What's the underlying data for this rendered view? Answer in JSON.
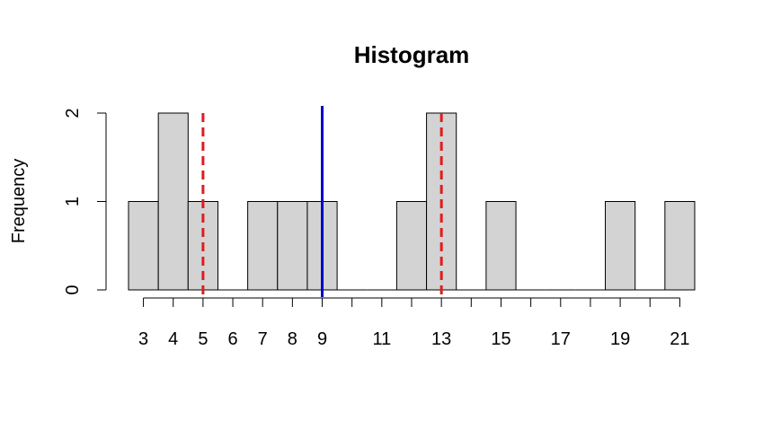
{
  "chart_data": {
    "type": "bar",
    "title": "Histogram",
    "xlabel": "",
    "ylabel": "Frequency",
    "bins": [
      {
        "from": 2.5,
        "to": 3.5,
        "count": 1
      },
      {
        "from": 3.5,
        "to": 4.5,
        "count": 2
      },
      {
        "from": 4.5,
        "to": 5.5,
        "count": 1
      },
      {
        "from": 5.5,
        "to": 6.5,
        "count": 0
      },
      {
        "from": 6.5,
        "to": 7.5,
        "count": 1
      },
      {
        "from": 7.5,
        "to": 8.5,
        "count": 1
      },
      {
        "from": 8.5,
        "to": 9.5,
        "count": 1
      },
      {
        "from": 9.5,
        "to": 10.5,
        "count": 0
      },
      {
        "from": 10.5,
        "to": 11.5,
        "count": 0
      },
      {
        "from": 11.5,
        "to": 12.5,
        "count": 1
      },
      {
        "from": 12.5,
        "to": 13.5,
        "count": 2
      },
      {
        "from": 13.5,
        "to": 14.5,
        "count": 0
      },
      {
        "from": 14.5,
        "to": 15.5,
        "count": 1
      },
      {
        "from": 15.5,
        "to": 16.5,
        "count": 0
      },
      {
        "from": 16.5,
        "to": 17.5,
        "count": 0
      },
      {
        "from": 17.5,
        "to": 18.5,
        "count": 0
      },
      {
        "from": 18.5,
        "to": 19.5,
        "count": 1
      },
      {
        "from": 19.5,
        "to": 20.5,
        "count": 0
      },
      {
        "from": 20.5,
        "to": 21.5,
        "count": 1
      }
    ],
    "x_ticks": [
      3,
      4,
      5,
      6,
      7,
      8,
      9,
      10,
      11,
      12,
      13,
      14,
      15,
      16,
      17,
      18,
      19,
      20,
      21
    ],
    "x_tick_labels": [
      "3",
      "4",
      "5",
      "6",
      "7",
      "8",
      "9",
      "",
      "11",
      "",
      "13",
      "",
      "15",
      "",
      "17",
      "",
      "19",
      "",
      "21"
    ],
    "y_ticks": [
      0,
      1,
      2
    ],
    "xlim": [
      2.5,
      21.5
    ],
    "ylim": [
      0,
      2
    ],
    "bar_color": "#d3d3d3",
    "grid": false,
    "reference_lines": [
      {
        "x": 9,
        "color": "#0000cc",
        "style": "solid"
      },
      {
        "x": 5,
        "color": "#e31a1c",
        "style": "dashed"
      },
      {
        "x": 13,
        "color": "#e31a1c",
        "style": "dashed"
      }
    ]
  }
}
